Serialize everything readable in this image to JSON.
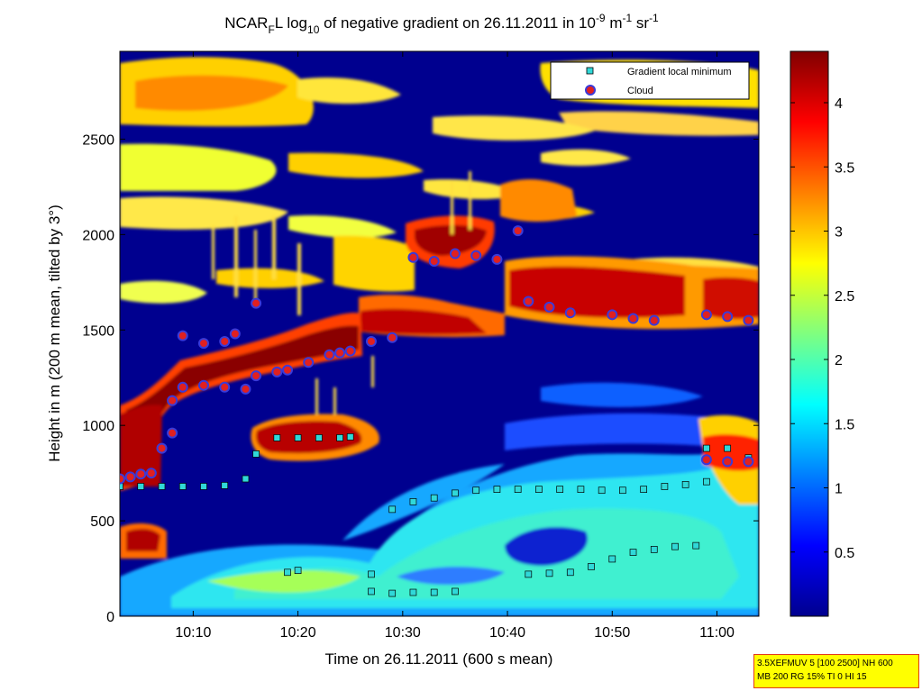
{
  "chart_data": {
    "type": "heatmap",
    "title": "NCAR_F L log_10 of negative gradient on 26.11.2011 in 10^-9 m^-1 sr^-1",
    "title_parts": {
      "p1": "NCAR",
      "sub1": "F",
      "p2": "L log",
      "sub2": "10",
      "p3": " of negative gradient on 26.11.2011 in 10",
      "sup1": "-9",
      "p4": " m",
      "sup2": "-1",
      "p5": " sr",
      "sup3": "-1"
    },
    "xlabel": "Time on 26.11.2011 (600 s mean)",
    "ylabel": "Height in m (200 m mean, tilted by 3°)",
    "xlim": [
      "10:03",
      "11:04"
    ],
    "ylim": [
      0,
      2960
    ],
    "x_ticks": [
      "10:10",
      "10:20",
      "10:30",
      "10:40",
      "10:50",
      "11:00"
    ],
    "y_ticks": [
      0,
      500,
      1000,
      1500,
      2000,
      2500
    ],
    "colorbar": {
      "colormap": "jet",
      "range": [
        0,
        4.4
      ],
      "ticks": [
        0.5,
        1,
        1.5,
        2,
        2.5,
        3,
        3.5,
        4
      ]
    },
    "legend_position": "top-right",
    "series": [
      {
        "name": "Gradient local minimum",
        "marker": "square",
        "points": [
          [
            "10:03",
            680
          ],
          [
            "10:05",
            680
          ],
          [
            "10:07",
            680
          ],
          [
            "10:09",
            680
          ],
          [
            "10:11",
            680
          ],
          [
            "10:13",
            685
          ],
          [
            "10:15",
            720
          ],
          [
            "10:16",
            850
          ],
          [
            "10:18",
            935
          ],
          [
            "10:20",
            935
          ],
          [
            "10:22",
            935
          ],
          [
            "10:24",
            935
          ],
          [
            "10:25",
            940
          ],
          [
            "10:29",
            560
          ],
          [
            "10:31",
            600
          ],
          [
            "10:33",
            620
          ],
          [
            "10:35",
            645
          ],
          [
            "10:37",
            660
          ],
          [
            "10:39",
            665
          ],
          [
            "10:41",
            665
          ],
          [
            "10:43",
            665
          ],
          [
            "10:45",
            665
          ],
          [
            "10:47",
            665
          ],
          [
            "10:49",
            660
          ],
          [
            "10:51",
            660
          ],
          [
            "10:53",
            665
          ],
          [
            "10:55",
            680
          ],
          [
            "10:57",
            690
          ],
          [
            "10:59",
            705
          ],
          [
            "10:19",
            230
          ],
          [
            "10:20",
            240
          ],
          [
            "10:27",
            220
          ],
          [
            "10:27",
            130
          ],
          [
            "10:29",
            120
          ],
          [
            "10:31",
            125
          ],
          [
            "10:33",
            125
          ],
          [
            "10:35",
            130
          ],
          [
            "10:42",
            220
          ],
          [
            "10:44",
            225
          ],
          [
            "10:46",
            230
          ],
          [
            "10:48",
            260
          ],
          [
            "10:50",
            300
          ],
          [
            "10:52",
            335
          ],
          [
            "10:54",
            350
          ],
          [
            "10:56",
            365
          ],
          [
            "10:58",
            370
          ],
          [
            "10:59",
            880
          ],
          [
            "11:01",
            880
          ],
          [
            "11:03",
            830
          ]
        ]
      },
      {
        "name": "Cloud",
        "marker": "circle",
        "points": [
          [
            "10:03",
            720
          ],
          [
            "10:04",
            730
          ],
          [
            "10:05",
            745
          ],
          [
            "10:06",
            750
          ],
          [
            "10:07",
            880
          ],
          [
            "10:08",
            960
          ],
          [
            "10:08",
            1130
          ],
          [
            "10:09",
            1200
          ],
          [
            "10:11",
            1210
          ],
          [
            "10:13",
            1200
          ],
          [
            "10:15",
            1190
          ],
          [
            "10:16",
            1260
          ],
          [
            "10:18",
            1280
          ],
          [
            "10:19",
            1290
          ],
          [
            "10:21",
            1330
          ],
          [
            "10:23",
            1370
          ],
          [
            "10:24",
            1380
          ],
          [
            "10:25",
            1390
          ],
          [
            "10:27",
            1440
          ],
          [
            "10:29",
            1460
          ],
          [
            "10:31",
            1880
          ],
          [
            "10:33",
            1860
          ],
          [
            "10:35",
            1900
          ],
          [
            "10:37",
            1890
          ],
          [
            "10:39",
            1870
          ],
          [
            "10:41",
            2020
          ],
          [
            "10:42",
            1650
          ],
          [
            "10:44",
            1620
          ],
          [
            "10:46",
            1590
          ],
          [
            "10:50",
            1580
          ],
          [
            "10:52",
            1560
          ],
          [
            "10:54",
            1550
          ],
          [
            "10:59",
            1580
          ],
          [
            "11:01",
            1570
          ],
          [
            "11:03",
            1550
          ],
          [
            "10:09",
            1470
          ],
          [
            "10:11",
            1430
          ],
          [
            "10:13",
            1440
          ],
          [
            "10:14",
            1480
          ],
          [
            "10:16",
            1640
          ],
          [
            "10:59",
            820
          ],
          [
            "11:01",
            810
          ],
          [
            "11:03",
            810
          ]
        ]
      }
    ]
  },
  "settings_box": {
    "line1": "3.5XEFMUV 5 [100 2500] NH 600",
    "line2": "MB 200 RG 15% TI 0 HI 15"
  }
}
